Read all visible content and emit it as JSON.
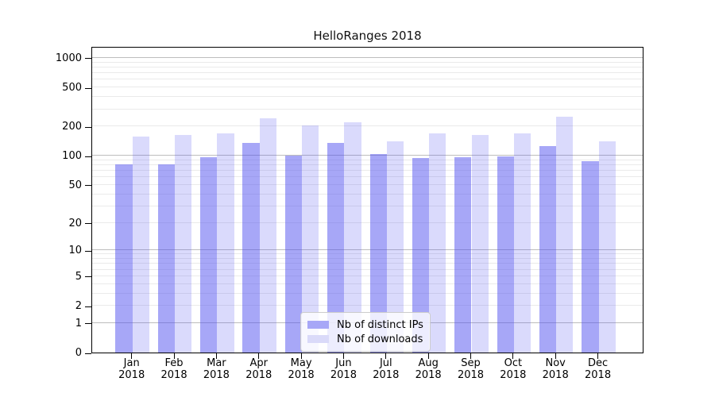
{
  "chart_data": {
    "type": "bar",
    "title": "HelloRanges 2018",
    "categories": [
      "Jan 2018",
      "Feb 2018",
      "Mar 2018",
      "Apr 2018",
      "May 2018",
      "Jun 2018",
      "Jul 2018",
      "Aug 2018",
      "Sep 2018",
      "Oct 2018",
      "Nov 2018",
      "Dec 2018"
    ],
    "series": [
      {
        "name": "Nb of distinct IPs",
        "fill": "rgba(80,80,240,0.5)",
        "legend_color": "#a7a7f7",
        "values": [
          81,
          81,
          97,
          136,
          100,
          135,
          105,
          95,
          96,
          98,
          126,
          88
        ]
      },
      {
        "name": "Nb of downloads",
        "fill": "rgba(80,80,240,0.21)",
        "legend_color": "#dadaf9",
        "values": [
          157,
          164,
          170,
          240,
          204,
          220,
          142,
          171,
          163,
          169,
          253,
          142
        ]
      }
    ],
    "xlabel": "",
    "ylabel": "",
    "yscale": "symlog",
    "yticks": [
      1000,
      500,
      200,
      100,
      50,
      20,
      10,
      5,
      2,
      1,
      0
    ],
    "ylim": [
      0,
      1315
    ],
    "grid": true,
    "grid_major_color": "#bdbdbd",
    "grid_minor_color": "#eaeaea",
    "axis_color": "#000000",
    "background": "#ffffff",
    "legend_position": "lower center"
  }
}
